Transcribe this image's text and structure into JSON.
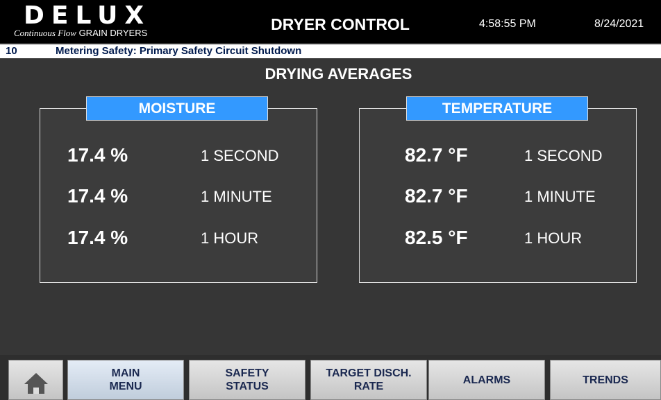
{
  "header": {
    "logo": "DELUX",
    "tagline_script": "Continuous Flow",
    "tagline": "GRAIN DRYERS",
    "title": "DRYER CONTROL",
    "time": "4:58:55 PM",
    "date": "8/24/2021"
  },
  "alarm": {
    "code": "10",
    "message": "Metering Safety: Primary Safety Circuit Shutdown"
  },
  "page_title": "DRYING AVERAGES",
  "panels": [
    {
      "title": "MOISTURE",
      "rows": [
        {
          "value": "17.4 %",
          "period": "1 SECOND"
        },
        {
          "value": "17.4 %",
          "period": "1 MINUTE"
        },
        {
          "value": "17.4 %",
          "period": "1 HOUR"
        }
      ]
    },
    {
      "title": "TEMPERATURE",
      "rows": [
        {
          "value": "82.7 °F",
          "period": "1 SECOND"
        },
        {
          "value": "82.7 °F",
          "period": "1 MINUTE"
        },
        {
          "value": "82.5 °F",
          "period": "1 HOUR"
        }
      ]
    }
  ],
  "nav": [
    {
      "lines": [
        "MAIN",
        "MENU"
      ]
    },
    {
      "lines": [
        "SAFETY",
        "STATUS"
      ]
    },
    {
      "lines": [
        "TARGET DISCH.",
        "RATE"
      ]
    },
    {
      "lines": [
        "ALARMS"
      ]
    },
    {
      "lines": [
        "TRENDS"
      ]
    }
  ]
}
